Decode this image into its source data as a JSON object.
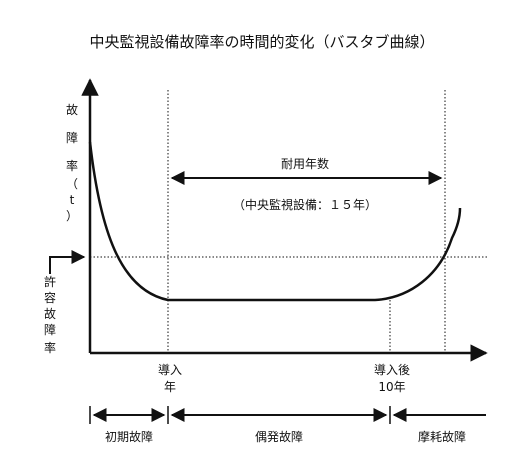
{
  "title": "中央監視設備故障率の時間的変化（バスタブ曲線）",
  "y_axis_label": [
    "故",
    "障",
    "率",
    "（",
    "t",
    "）"
  ],
  "allowable_rate_label": [
    "許",
    "容",
    "故",
    "障",
    "率"
  ],
  "service_life": {
    "label": "耐用年数",
    "note": "（中央監視設備：１５年）"
  },
  "x_marks": {
    "install_line1": "導入",
    "install_line2": "年",
    "after_line1": "導入後",
    "after_line2": "10年"
  },
  "phases": {
    "initial": "初期故障",
    "random": "偶発故障",
    "wearout": "摩耗故障"
  }
}
